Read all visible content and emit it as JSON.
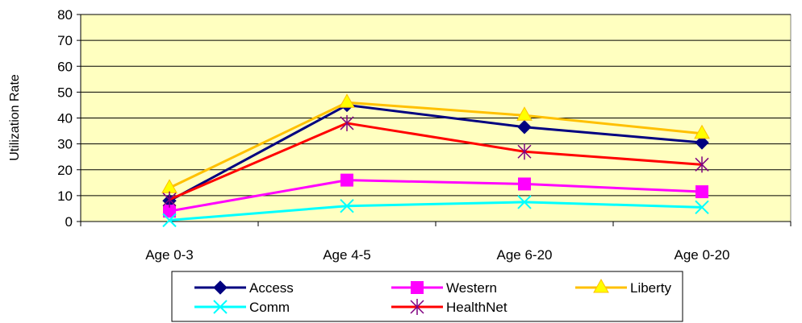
{
  "chart_data": {
    "type": "line",
    "title": "",
    "xlabel": "",
    "ylabel": "Utilization Rate",
    "ylim": [
      0,
      80
    ],
    "yticks": [
      0,
      10,
      20,
      30,
      40,
      50,
      60,
      70,
      80
    ],
    "grid": true,
    "legend_position": "bottom",
    "categories": [
      "Age 0-3",
      "Age 4-5",
      "Age 6-20",
      "Age 0-20"
    ],
    "series": [
      {
        "name": "Access",
        "values": [
          8,
          45,
          36.5,
          30.5
        ],
        "color": "#000080",
        "marker": "diamond"
      },
      {
        "name": "Western",
        "values": [
          4,
          16,
          14.5,
          11.5
        ],
        "color": "#ff00ff",
        "marker": "square"
      },
      {
        "name": "Liberty",
        "values": [
          13,
          46,
          41,
          34
        ],
        "color": "#ffc000",
        "marker": "triangle"
      },
      {
        "name": "Comm",
        "values": [
          0.5,
          6,
          7.5,
          5.5
        ],
        "color": "#00ffff",
        "marker": "x"
      },
      {
        "name": "HealthNet",
        "values": [
          8.5,
          38,
          27,
          22
        ],
        "color": "#ff0000",
        "marker": "star"
      }
    ]
  },
  "colors": {
    "plot_background": "#ffffc0",
    "grid": "#000000"
  }
}
